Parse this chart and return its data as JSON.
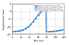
{
  "title": "",
  "xlabel": "Time (ms)",
  "ylabel": "Displacement (mm)",
  "xlim": [
    0,
    120
  ],
  "ylim": [
    -15,
    5
  ],
  "yticks": [
    5,
    0,
    -5,
    -10,
    -15
  ],
  "xticks": [
    0,
    20,
    40,
    60,
    80,
    100,
    120
  ],
  "legend_entries": [
    "Fine mesh: 2560x170 3 layers",
    "Coarser mesh: 1280x85 3 layers",
    "Fine mesh: 2560x170 5 layers",
    "Coarser mesh: 1280x85 5 layers"
  ],
  "background_color": "#ffffff",
  "grid_color": "#cccccc",
  "curve_colors": [
    "#2060c0",
    "#70aae0",
    "#60c0e0",
    "#a0d0f0"
  ],
  "curve_styles": [
    "-",
    ":",
    "-",
    ":"
  ],
  "curve_markers": [
    "None",
    "o",
    "None",
    "s"
  ],
  "figsize": [
    1.0,
    0.66
  ],
  "dpi": 100
}
